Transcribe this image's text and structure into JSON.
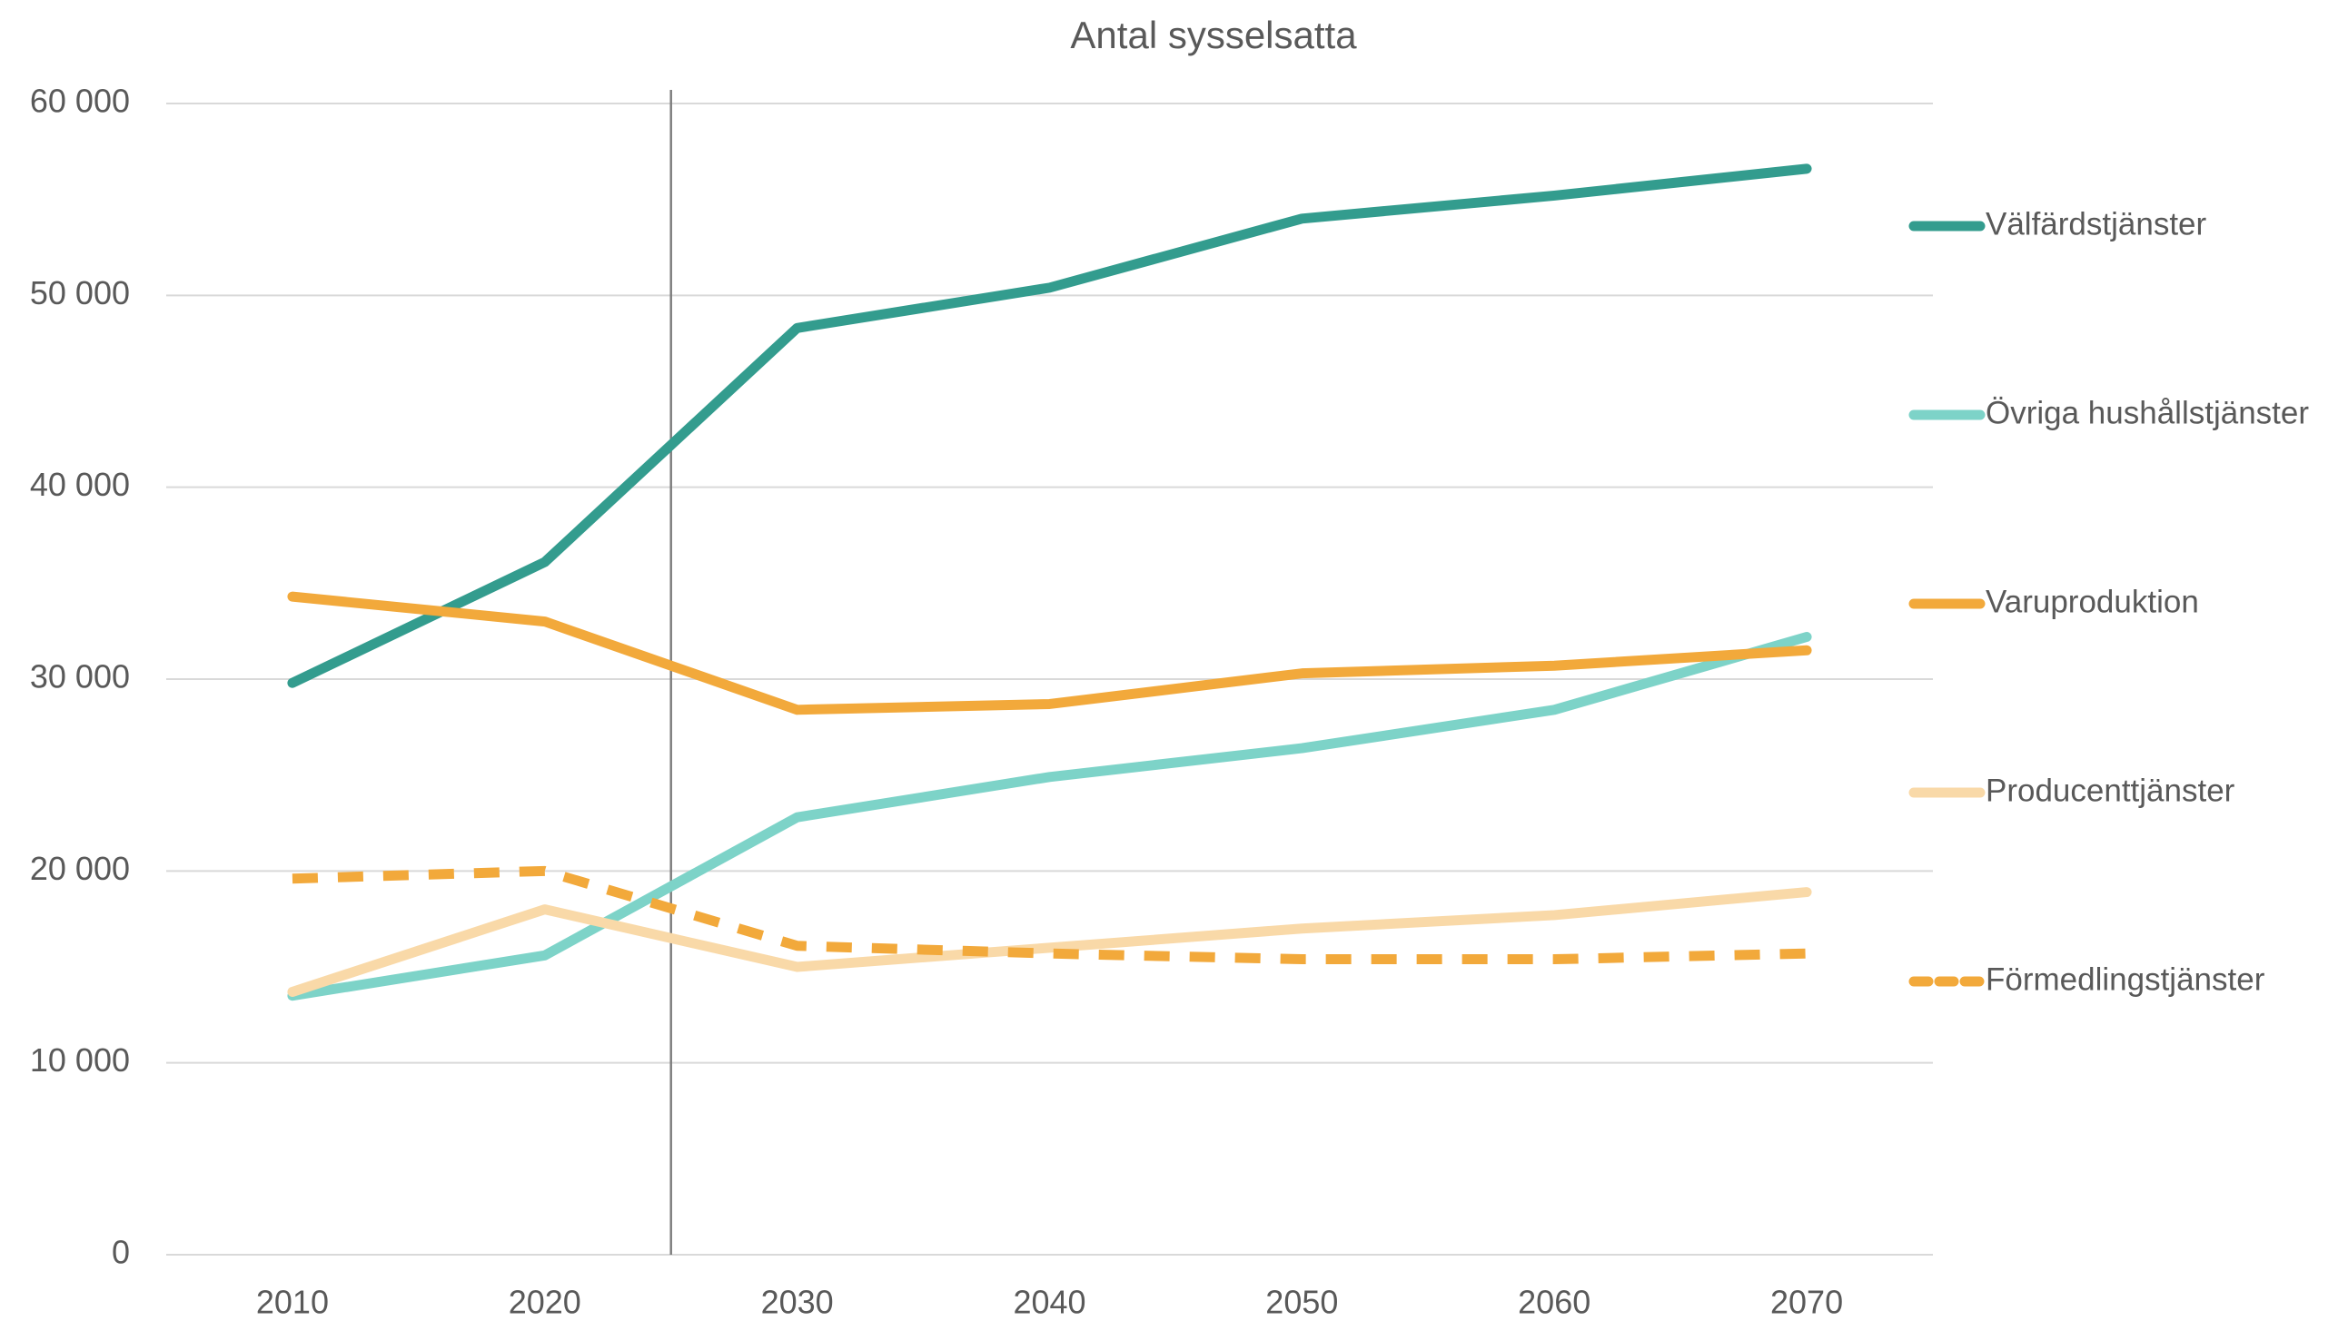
{
  "chart_data": {
    "type": "line",
    "title": "Antal sysselsatta",
    "categories": [
      "2010",
      "2020",
      "2030",
      "2040",
      "2050",
      "2060",
      "2070"
    ],
    "series": [
      {
        "name": "Välfärdstjänster",
        "color": "#339c8e",
        "values": [
          29800,
          36100,
          48300,
          50400,
          54000,
          55200,
          56600
        ]
      },
      {
        "name": "Övriga hushållstjänster",
        "color": "#7dd3c8",
        "values": [
          13500,
          15600,
          22800,
          24900,
          26400,
          28400,
          32200
        ]
      },
      {
        "name": "Varuproduktion",
        "color": "#f2a93b",
        "values": [
          34300,
          33000,
          28400,
          28700,
          30300,
          30700,
          31500
        ]
      },
      {
        "name": "Producenttjänster",
        "color": "#f9d9a8",
        "values": [
          13700,
          18000,
          15000,
          16000,
          17000,
          17700,
          18900
        ]
      },
      {
        "name": "Förmedlingstjänster",
        "color": "#f2a93b",
        "dashed": true,
        "values": [
          19600,
          20000,
          16100,
          15700,
          15400,
          15400,
          15700
        ]
      }
    ],
    "ylim": [
      0,
      60000
    ],
    "yticks": [
      0,
      {
        "value": 10000,
        "label": "10 000"
      },
      {
        "value": 20000,
        "label": "20 000"
      },
      {
        "value": 30000,
        "label": "30 000"
      },
      {
        "value": 40000,
        "label": "40 000"
      },
      {
        "value": 50000,
        "label": "50 000"
      },
      {
        "value": 60000,
        "label": "60 000"
      }
    ],
    "grid": true,
    "legend": "right"
  }
}
